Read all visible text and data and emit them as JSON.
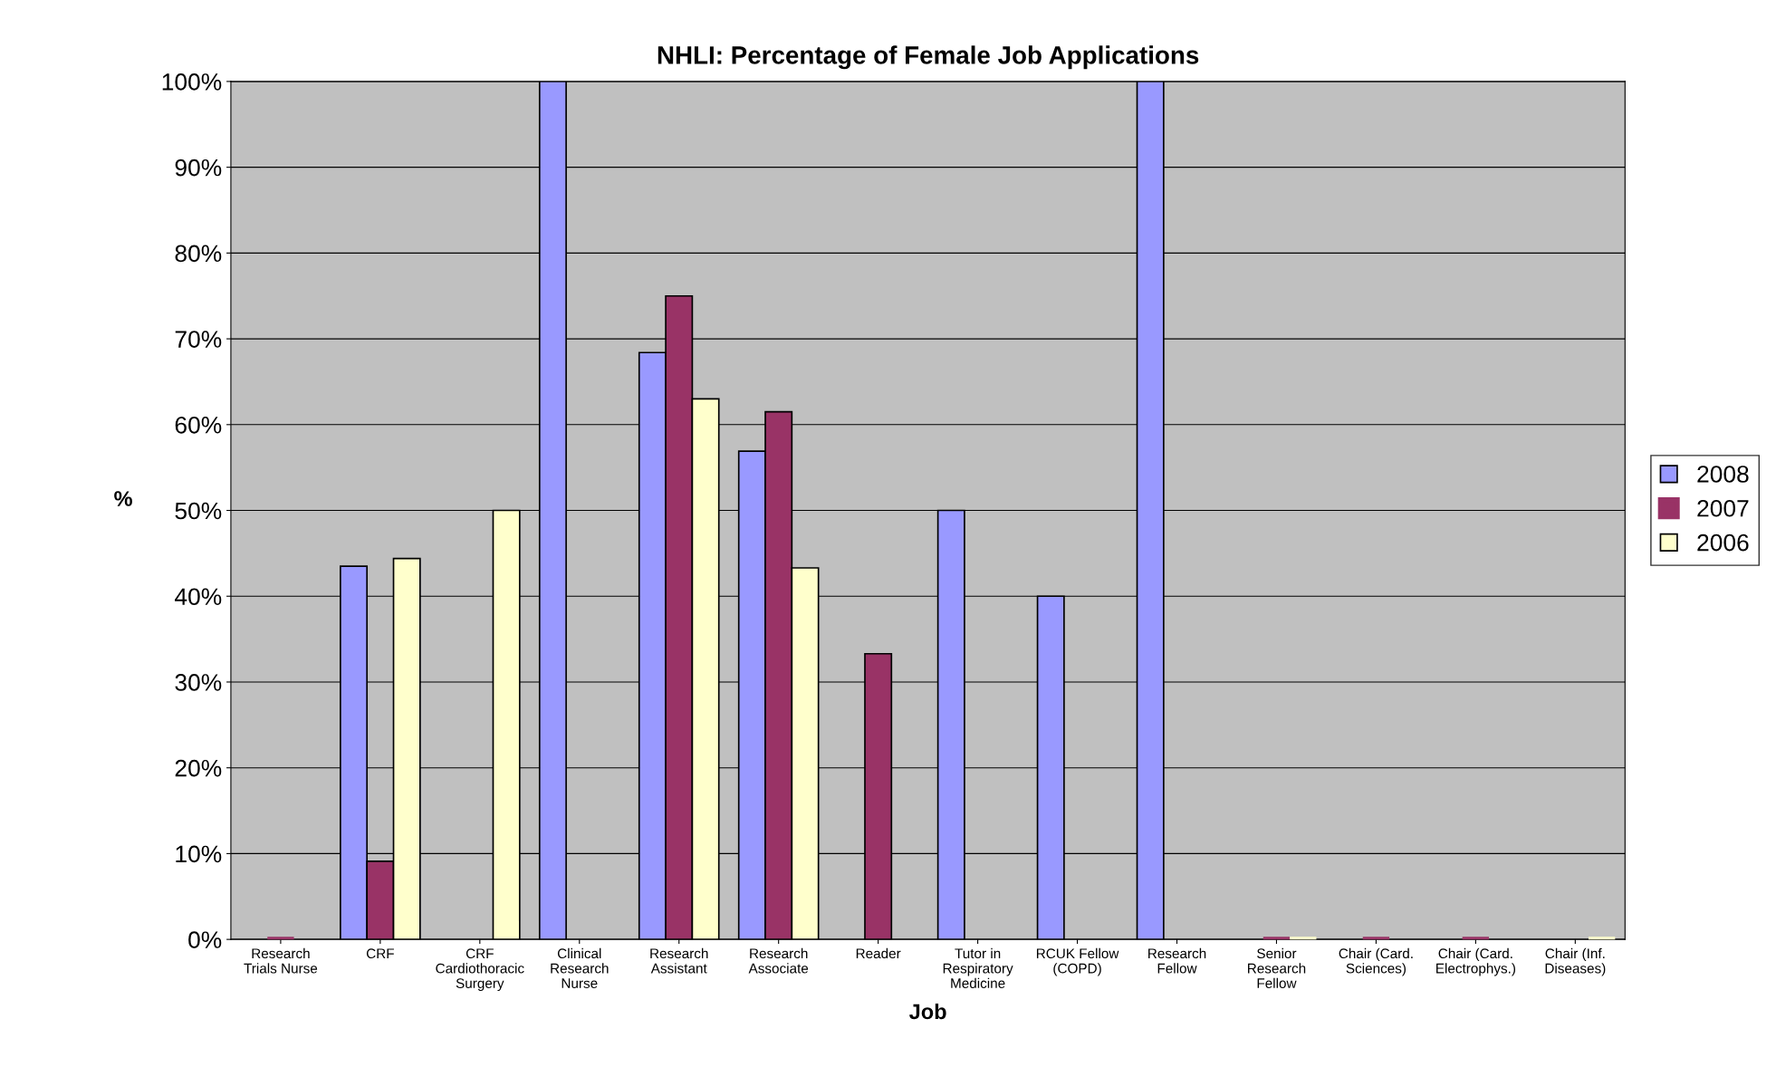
{
  "chart_data": {
    "type": "bar",
    "title": "NHLI: Percentage of Female Job Applications",
    "xlabel": "Job",
    "ylabel": "%",
    "categories": [
      "Research\nTrials Nurse",
      "CRF",
      "CRF\nCardiothoracic\nSurgery",
      "Clinical\nResearch\nNurse",
      "Research\nAssistant",
      "Research\nAssociate",
      "Reader",
      "Tutor in\nRespiratory\nMedicine",
      "RCUK Fellow\n(COPD)",
      "Research\nFellow",
      "Senior\nResearch\nFellow",
      "Chair (Card.\nSciences)",
      "Chair (Card.\nElectrophys.)",
      "Chair (Inf.\nDiseases)"
    ],
    "series": [
      {
        "name": "2008",
        "color": "#9999ff",
        "values": [
          null,
          43.5,
          null,
          100,
          68.4,
          56.9,
          null,
          50,
          40,
          100,
          null,
          null,
          null,
          null
        ]
      },
      {
        "name": "2007",
        "color": "#993366",
        "values": [
          0,
          9.1,
          null,
          null,
          75,
          61.5,
          33.3,
          null,
          null,
          null,
          0,
          0,
          0,
          null
        ]
      },
      {
        "name": "2006",
        "color": "#ffffcc",
        "values": [
          null,
          44.4,
          50,
          null,
          63,
          43.3,
          null,
          null,
          null,
          null,
          0,
          null,
          null,
          0
        ]
      }
    ],
    "ylim": [
      0,
      100
    ],
    "yticks": [
      {
        "value": 0,
        "label": "0%"
      },
      {
        "value": 10,
        "label": "10%"
      },
      {
        "value": 20,
        "label": "20%"
      },
      {
        "value": 30,
        "label": "30%"
      },
      {
        "value": 40,
        "label": "40%"
      },
      {
        "value": 50,
        "label": "50%"
      },
      {
        "value": 60,
        "label": "60%"
      },
      {
        "value": 70,
        "label": "70%"
      },
      {
        "value": 80,
        "label": "80%"
      },
      {
        "value": 90,
        "label": "90%"
      },
      {
        "value": 100,
        "label": "100%"
      }
    ],
    "grid": "y",
    "legend": "right"
  }
}
